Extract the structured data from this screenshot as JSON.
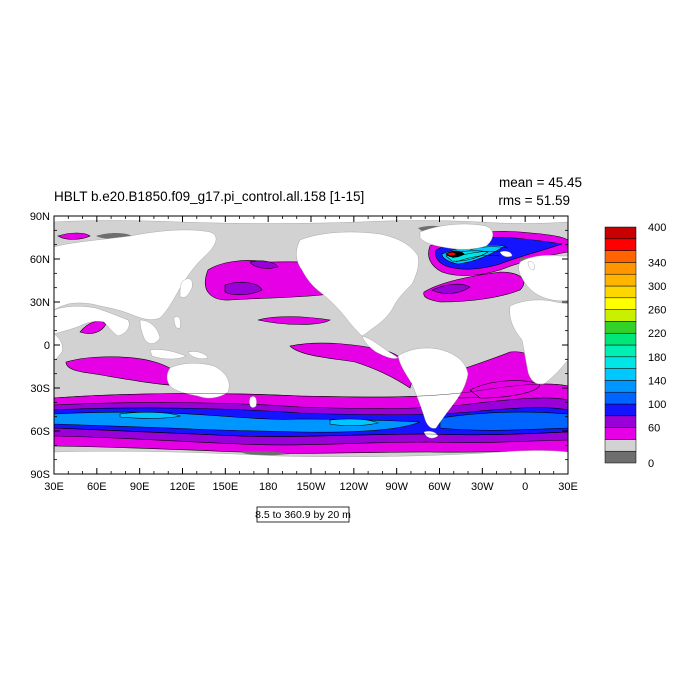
{
  "chart_data": {
    "type": "heatmap",
    "title": "HBLT b.e20.B1850.f09_g17.pi_control.all.158 [1-15]",
    "stats": {
      "mean": "mean = 45.45",
      "rms": "rms = 51.59"
    },
    "contour_info": "8.5 to 360.9 by 20 m",
    "x_ticks": [
      "30E",
      "60E",
      "90E",
      "120E",
      "150E",
      "180",
      "150W",
      "120W",
      "90W",
      "60W",
      "30W",
      "0",
      "30E"
    ],
    "y_ticks": [
      "90N",
      "60N",
      "30N",
      "0",
      "30S",
      "60S",
      "90S"
    ],
    "xlim": [
      30,
      390
    ],
    "ylim": [
      -90,
      90
    ],
    "grid": false,
    "legend": {
      "placement": "right",
      "labels": [
        "400",
        "340",
        "300",
        "260",
        "220",
        "180",
        "140",
        "100",
        "60",
        "0"
      ],
      "levels": [
        0,
        20,
        40,
        60,
        80,
        100,
        120,
        140,
        160,
        180,
        200,
        220,
        240,
        260,
        280,
        300,
        320,
        340,
        360,
        380,
        400
      ],
      "colors": [
        "#6e6e6e",
        "#d2d2d2",
        "#e600e6",
        "#9a00d8",
        "#1414ff",
        "#0064ff",
        "#0096ff",
        "#00c8ff",
        "#00e6e6",
        "#00f0b4",
        "#00e678",
        "#32d228",
        "#c8f000",
        "#ffff00",
        "#ffd700",
        "#ffb400",
        "#ff9600",
        "#ff6400",
        "#ff0000",
        "#c80000"
      ]
    },
    "palette": {
      "ocean_low": "#d2d2d2",
      "land": "#ffffff",
      "missing": "#6e6e6e",
      "contour": "#000000"
    }
  }
}
